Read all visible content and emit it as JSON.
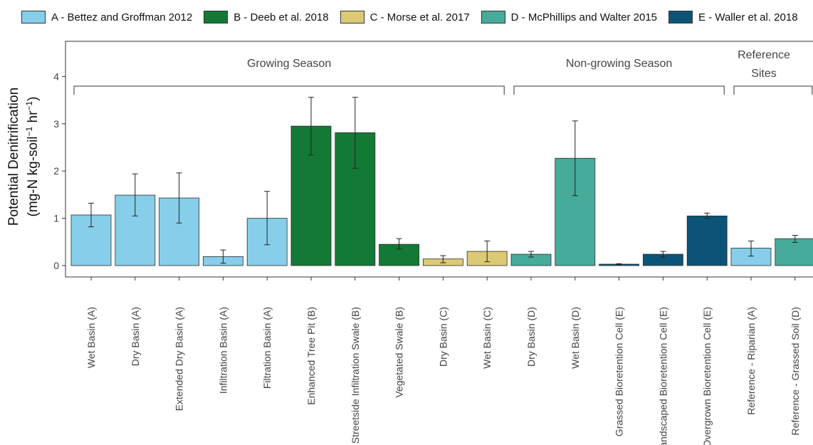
{
  "chart_data": {
    "type": "bar",
    "ylabel_line1": "Potential Denitrification",
    "ylabel_line2_parts": [
      "(mg-N kg-soil",
      "−1",
      " hr",
      "−1",
      ")"
    ],
    "ylim": [
      0,
      4.2
    ],
    "yticks": [
      "0",
      "1",
      "2",
      "3",
      "4"
    ],
    "grid": false,
    "legend_position": "top",
    "sources": [
      {
        "key": "A",
        "label": "A - Bettez and Groffman 2012",
        "color": "#87ceeb"
      },
      {
        "key": "B",
        "label": "B - Deeb et al. 2018",
        "color": "#137a35"
      },
      {
        "key": "C",
        "label": "C - Morse et al. 2017",
        "color": "#dcc973"
      },
      {
        "key": "D",
        "label": "D - McPhillips and Walter 2015",
        "color": "#46ab9b"
      },
      {
        "key": "E",
        "label": "E - Waller et al. 2018",
        "color": "#0c5477"
      }
    ],
    "groups": [
      {
        "label": [
          "Growing Season"
        ],
        "from": 0,
        "to": 9
      },
      {
        "label": [
          "Non-growing Season"
        ],
        "from": 10,
        "to": 14
      },
      {
        "label": [
          "Reference",
          "Sites"
        ],
        "from": 15,
        "to": 16
      }
    ],
    "categories": [
      "Wet Basin (A)",
      "Dry Basin (A)",
      "Extended Dry Basin (A)",
      "Infiltration Basin (A)",
      "Filtration Basin (A)",
      "Enhanced Tree Pit (B)",
      "Streetside Infiltration Swale (B)",
      "Vegetated Swale (B)",
      "Dry Basin (C)",
      "Wet Basin (C)",
      "Dry Basin (D)",
      "Wet Basin (D)",
      "Grassed Bioretention Cell (E)",
      "Landscaped Bioretention Cell (E)",
      "Overgrown Bioretention Cell (E)",
      "Reference -  Riparian (A)",
      "Reference -  Grassed Soil (D)"
    ],
    "source_of_bar": [
      "A",
      "A",
      "A",
      "A",
      "A",
      "B",
      "B",
      "B",
      "C",
      "C",
      "D",
      "D",
      "E",
      "E",
      "E",
      "A",
      "D"
    ],
    "values": [
      1.07,
      1.49,
      1.43,
      0.19,
      1.0,
      2.95,
      2.81,
      0.45,
      0.14,
      0.3,
      0.24,
      2.27,
      0.03,
      0.24,
      1.05,
      0.37,
      0.57
    ],
    "err_low": [
      0.82,
      1.05,
      0.9,
      0.05,
      0.44,
      2.34,
      2.06,
      0.35,
      0.06,
      0.08,
      0.18,
      1.48,
      0.02,
      0.18,
      1.0,
      0.2,
      0.49
    ],
    "err_high": [
      1.32,
      1.94,
      1.96,
      0.33,
      1.57,
      3.56,
      3.56,
      0.57,
      0.21,
      0.52,
      0.3,
      3.06,
      0.04,
      0.3,
      1.11,
      0.52,
      0.64
    ]
  }
}
